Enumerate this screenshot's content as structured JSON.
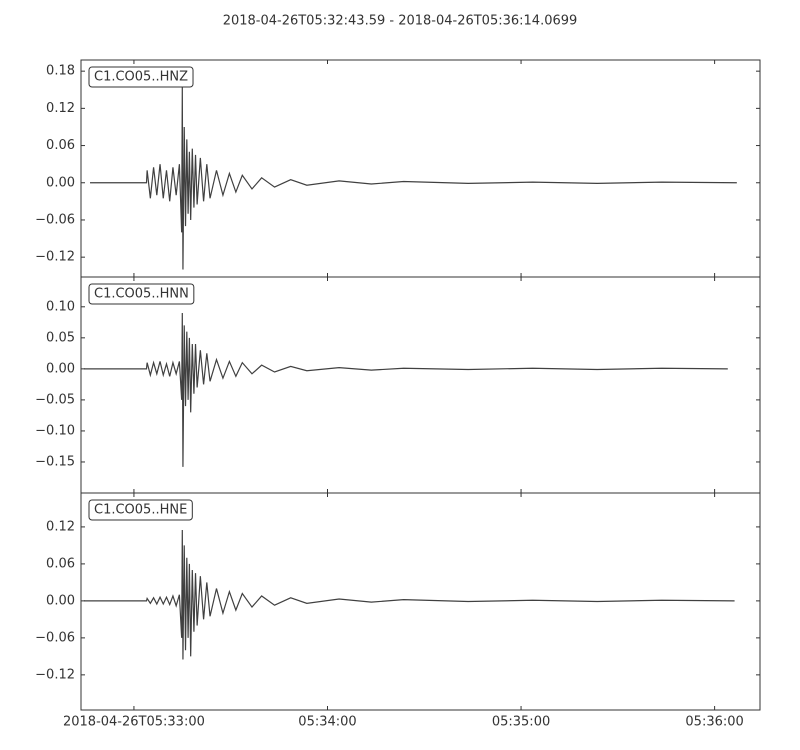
{
  "chart_data": [
    {
      "type": "line",
      "title": "2018-04-26T05:32:43.59  -  2018-04-26T05:36:14.0699",
      "x": [
        2.8,
        20.3,
        20.5,
        21.5,
        22.5,
        23.5,
        24.5,
        25.5,
        26.5,
        27.5,
        28.5,
        29.5,
        30.5,
        31.2,
        31.4,
        31.6,
        32.0,
        32.4,
        32.8,
        33.2,
        33.6,
        34.0,
        34.5,
        35.0,
        35.5,
        36.0,
        37,
        38,
        39,
        40,
        42,
        44,
        46,
        48,
        50,
        53,
        56,
        60,
        65,
        70,
        80,
        90,
        100,
        120,
        140,
        160,
        180,
        203.3
      ],
      "series": [
        {
          "name": "C1.CO05..HNZ",
          "color": "#404040",
          "values": [
            0,
            0,
            0.02,
            -0.025,
            0.025,
            -0.02,
            0.03,
            -0.025,
            0.02,
            -0.03,
            0.025,
            -0.02,
            0.03,
            -0.08,
            0.155,
            -0.14,
            0.09,
            -0.07,
            0.07,
            -0.05,
            0.05,
            -0.06,
            0.055,
            -0.04,
            0.045,
            -0.035,
            0.04,
            -0.03,
            0.03,
            -0.025,
            0.02,
            -0.02,
            0.015,
            -0.015,
            0.012,
            -0.01,
            0.008,
            -0.007,
            0.005,
            -0.004,
            0.003,
            -0.002,
            0.002,
            -0.001,
            0.001,
            -0.001,
            0.001,
            0
          ]
        }
      ],
      "xlim": [
        0,
        210.48
      ],
      "ylim": [
        -0.152,
        0.198
      ],
      "yticks": [
        {
          "value": -0.12,
          "label": "−0.12"
        },
        {
          "value": -0.06,
          "label": "−0.06"
        },
        {
          "value": 0,
          "label": "0.00"
        },
        {
          "value": 0.06,
          "label": "0.06"
        },
        {
          "value": 0.12,
          "label": "0.12"
        },
        {
          "value": 0.18,
          "label": "0.18"
        }
      ]
    },
    {
      "type": "line",
      "x": [
        0.9,
        20.3,
        20.5,
        21.5,
        22.5,
        23.5,
        24.5,
        25.5,
        26.5,
        27.5,
        28.5,
        29.5,
        30.5,
        31.2,
        31.4,
        31.6,
        32.0,
        32.4,
        32.8,
        33.2,
        33.6,
        34.0,
        34.5,
        35.0,
        35.5,
        36.0,
        37,
        38,
        39,
        40,
        42,
        44,
        46,
        48,
        50,
        53,
        56,
        60,
        65,
        70,
        80,
        90,
        100,
        120,
        140,
        160,
        180,
        200.5
      ],
      "series": [
        {
          "name": "C1.CO05..HNN",
          "color": "#404040",
          "values": [
            0,
            0,
            0.01,
            -0.01,
            0.01,
            -0.008,
            0.012,
            -0.01,
            0.008,
            -0.012,
            0.01,
            -0.008,
            0.012,
            -0.05,
            0.09,
            -0.158,
            0.07,
            -0.06,
            0.06,
            -0.05,
            0.05,
            -0.07,
            0.04,
            -0.04,
            0.04,
            -0.03,
            0.03,
            -0.025,
            0.025,
            -0.02,
            0.015,
            -0.015,
            0.012,
            -0.012,
            0.01,
            -0.008,
            0.006,
            -0.005,
            0.004,
            -0.003,
            0.002,
            -0.002,
            0.001,
            -0.001,
            0.001,
            -0.001,
            0.001,
            0
          ]
        }
      ],
      "xlim": [
        0,
        210.48
      ],
      "ylim": [
        -0.2,
        0.148
      ],
      "yticks": [
        {
          "value": -0.15,
          "label": "−0.15"
        },
        {
          "value": -0.1,
          "label": "−0.10"
        },
        {
          "value": -0.05,
          "label": "−0.05"
        },
        {
          "value": 0,
          "label": "0.00"
        },
        {
          "value": 0.05,
          "label": "0.05"
        },
        {
          "value": 0.1,
          "label": "0.10"
        }
      ]
    },
    {
      "type": "line",
      "x": [
        0.9,
        20.3,
        20.5,
        21.5,
        22.5,
        23.5,
        24.5,
        25.5,
        26.5,
        27.5,
        28.5,
        29.5,
        30.5,
        31.2,
        31.4,
        31.6,
        32.0,
        32.4,
        32.8,
        33.2,
        33.6,
        34.0,
        34.5,
        35.0,
        35.5,
        36.0,
        37,
        38,
        39,
        40,
        42,
        44,
        46,
        48,
        50,
        53,
        56,
        60,
        65,
        70,
        80,
        90,
        100,
        120,
        140,
        160,
        180,
        202.6
      ],
      "series": [
        {
          "name": "C1.CO05..HNE",
          "color": "#404040",
          "values": [
            0,
            0,
            0.004,
            -0.004,
            0.005,
            -0.005,
            0.006,
            -0.005,
            0.006,
            -0.006,
            0.008,
            -0.008,
            0.01,
            -0.06,
            0.115,
            -0.095,
            0.09,
            -0.08,
            0.07,
            -0.06,
            0.06,
            -0.09,
            0.05,
            -0.05,
            0.045,
            -0.04,
            0.04,
            -0.03,
            0.03,
            -0.025,
            0.02,
            -0.02,
            0.015,
            -0.015,
            0.012,
            -0.01,
            0.008,
            -0.007,
            0.005,
            -0.004,
            0.003,
            -0.002,
            0.002,
            -0.001,
            0.001,
            -0.001,
            0.001,
            0
          ]
        }
      ],
      "xlim": [
        0,
        210.48
      ],
      "ylim": [
        -0.177,
        0.175
      ],
      "yticks": [
        {
          "value": -0.12,
          "label": "−0.12"
        },
        {
          "value": -0.06,
          "label": "−0.06"
        },
        {
          "value": 0,
          "label": "0.00"
        },
        {
          "value": 0.06,
          "label": "0.06"
        },
        {
          "value": 0.12,
          "label": "0.12"
        }
      ],
      "xticks": [
        {
          "value": 16.41,
          "label": "2018-04-26T05:33:00"
        },
        {
          "value": 76.41,
          "label": "05:34:00"
        },
        {
          "value": 136.41,
          "label": "05:35:00"
        },
        {
          "value": 196.41,
          "label": "05:36:00"
        }
      ]
    }
  ]
}
